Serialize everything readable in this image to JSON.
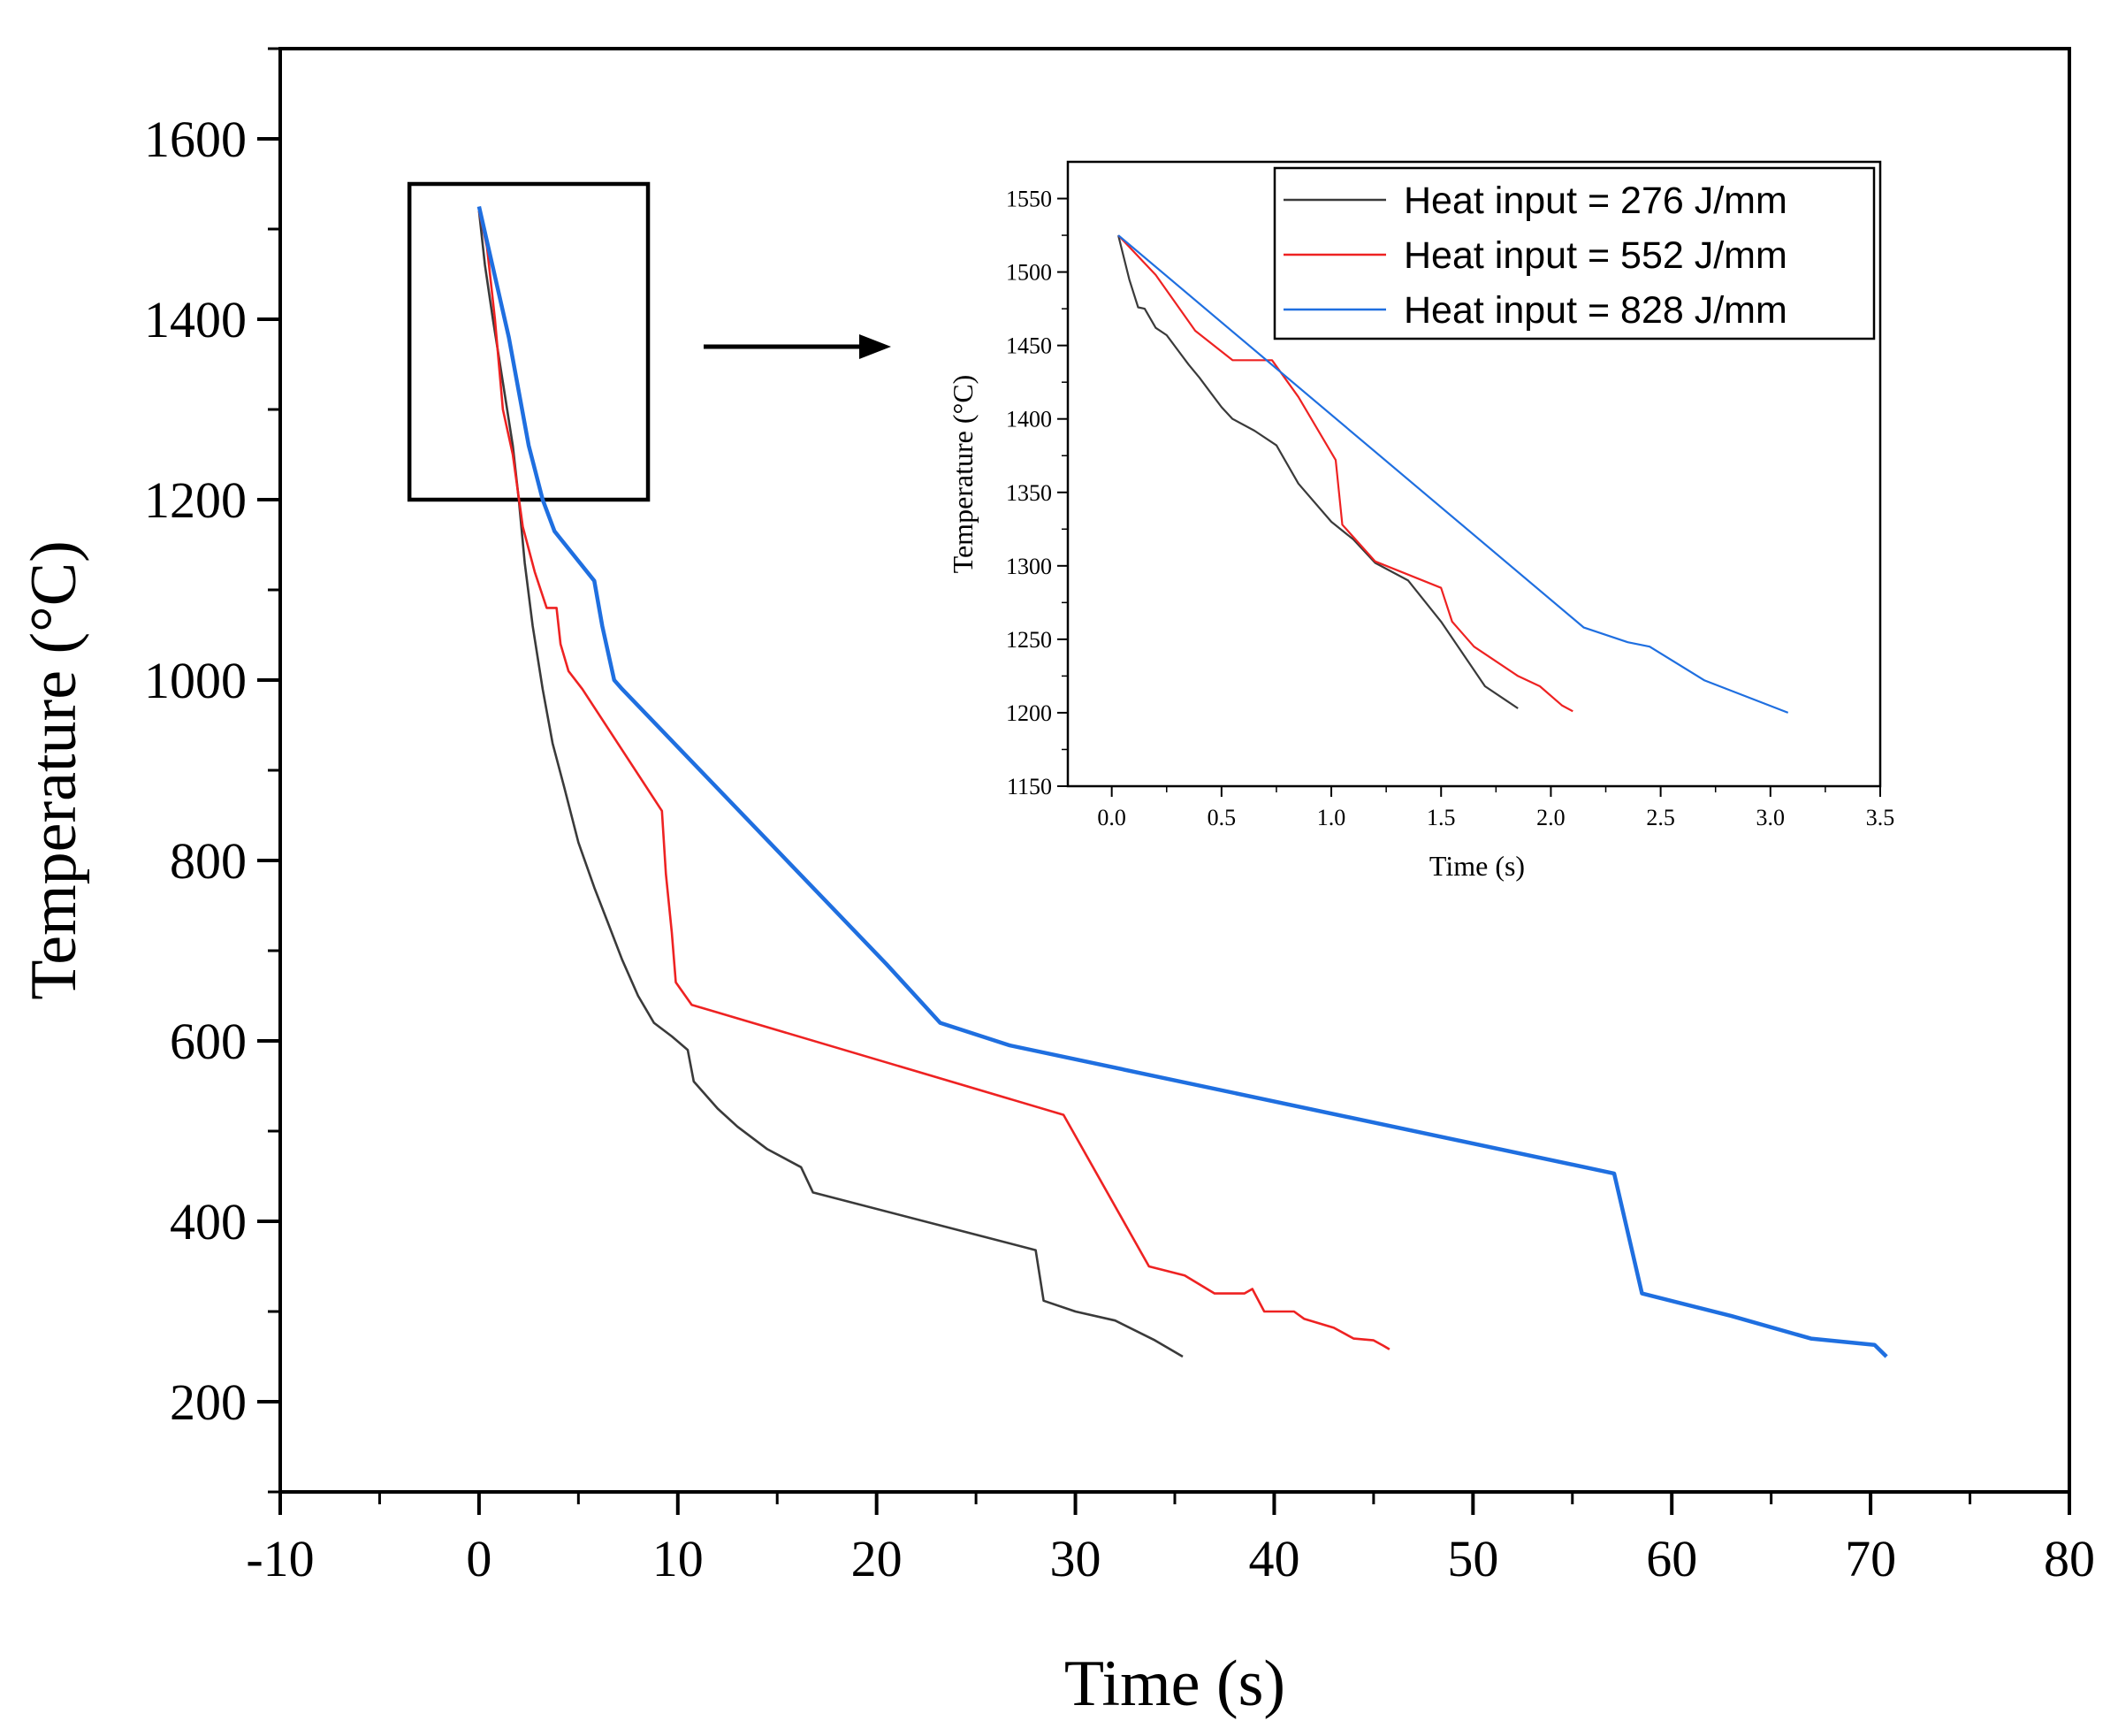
{
  "chart_data": [
    {
      "type": "line",
      "role": "main",
      "xlabel": "Time (s)",
      "ylabel": "Temperature (°C)",
      "xlim": [
        -10,
        80
      ],
      "ylim": [
        100,
        1700
      ],
      "xticks": [
        -10,
        0,
        10,
        20,
        30,
        40,
        50,
        60,
        70,
        80
      ],
      "yticks": [
        200,
        400,
        600,
        800,
        1000,
        1200,
        1400,
        1600
      ],
      "grid": false,
      "zoom_box": {
        "x_range": [
          -3.5,
          8.5
        ],
        "y_range": [
          1200,
          1550
        ]
      },
      "series": [
        {
          "color": "#3a3a3a",
          "points": [
            [
              0,
              1520
            ],
            [
              0.3,
              1460
            ],
            [
              0.7,
              1400
            ],
            [
              1.2,
              1330
            ],
            [
              1.7,
              1260
            ],
            [
              2.0,
              1200
            ],
            [
              2.3,
              1130
            ],
            [
              2.7,
              1060
            ],
            [
              3.2,
              990
            ],
            [
              3.7,
              930
            ],
            [
              4.3,
              880
            ],
            [
              5.0,
              820
            ],
            [
              5.8,
              770
            ],
            [
              6.5,
              730
            ],
            [
              7.2,
              690
            ],
            [
              8.0,
              650
            ],
            [
              8.8,
              620
            ],
            [
              9.7,
              605
            ],
            [
              10.5,
              590
            ],
            [
              10.8,
              555
            ],
            [
              12,
              525
            ],
            [
              13,
              505
            ],
            [
              14.5,
              480
            ],
            [
              16.2,
              460
            ],
            [
              16.8,
              432
            ],
            [
              28.0,
              368
            ],
            [
              28.4,
              312
            ],
            [
              30,
              300
            ],
            [
              32,
              290
            ],
            [
              34,
              268
            ],
            [
              35.4,
              250
            ]
          ]
        },
        {
          "color": "#ee2222",
          "points": [
            [
              0,
              1520
            ],
            [
              0.4,
              1480
            ],
            [
              0.8,
              1400
            ],
            [
              1.2,
              1300
            ],
            [
              1.7,
              1250
            ],
            [
              2.2,
              1170
            ],
            [
              2.8,
              1120
            ],
            [
              3.4,
              1080
            ],
            [
              3.9,
              1080
            ],
            [
              4.1,
              1040
            ],
            [
              4.5,
              1010
            ],
            [
              5.2,
              990
            ],
            [
              9.2,
              855
            ],
            [
              9.4,
              785
            ],
            [
              9.7,
              720
            ],
            [
              9.9,
              665
            ],
            [
              10.7,
              640
            ],
            [
              29.4,
              518
            ],
            [
              33.7,
              350
            ],
            [
              35.5,
              340
            ],
            [
              37,
              320
            ],
            [
              38.5,
              320
            ],
            [
              38.9,
              325
            ],
            [
              39.5,
              300
            ],
            [
              41,
              300
            ],
            [
              41.5,
              292
            ],
            [
              43,
              282
            ],
            [
              44,
              270
            ],
            [
              45,
              268
            ],
            [
              45.5,
              262
            ],
            [
              45.8,
              258
            ]
          ]
        },
        {
          "color": "#1f6fe0",
          "points": [
            [
              0,
              1525
            ],
            [
              1.5,
              1380
            ],
            [
              2.5,
              1260
            ],
            [
              3.2,
              1200
            ],
            [
              3.8,
              1165
            ],
            [
              5.8,
              1110
            ],
            [
              6.2,
              1060
            ],
            [
              6.8,
              1000
            ],
            [
              7.2,
              990
            ],
            [
              20.5,
              685
            ],
            [
              23.2,
              620
            ],
            [
              26.7,
              595
            ],
            [
              57.1,
              453
            ],
            [
              58.5,
              320
            ],
            [
              63,
              295
            ],
            [
              67,
              270
            ],
            [
              70.2,
              263
            ],
            [
              70.8,
              250
            ]
          ]
        }
      ]
    },
    {
      "type": "line",
      "role": "inset",
      "xlabel": "Time (s)",
      "ylabel": "Temperature (°C)",
      "xlim": [
        -0.2,
        3.5
      ],
      "ylim": [
        1150,
        1575
      ],
      "xticks": [
        0.0,
        0.5,
        1.0,
        1.5,
        2.0,
        2.5,
        3.0,
        3.5
      ],
      "xtick_labels": [
        "0.0",
        "0.5",
        "1.0",
        "1.5",
        "2.0",
        "2.5",
        "3.0",
        "3.5"
      ],
      "yticks": [
        1150,
        1200,
        1250,
        1300,
        1350,
        1400,
        1450,
        1500,
        1550
      ],
      "grid": false,
      "legend": "top-right",
      "series": [
        {
          "name": "Heat input = 276 J/mm",
          "color": "#3a3a3a",
          "points": [
            [
              0.03,
              1525
            ],
            [
              0.08,
              1495
            ],
            [
              0.12,
              1476
            ],
            [
              0.15,
              1475
            ],
            [
              0.2,
              1462
            ],
            [
              0.25,
              1457
            ],
            [
              0.3,
              1447
            ],
            [
              0.35,
              1437
            ],
            [
              0.4,
              1428
            ],
            [
              0.45,
              1418
            ],
            [
              0.5,
              1408
            ],
            [
              0.55,
              1400
            ],
            [
              0.65,
              1392
            ],
            [
              0.75,
              1382
            ],
            [
              0.85,
              1356
            ],
            [
              1.0,
              1330
            ],
            [
              1.1,
              1318
            ],
            [
              1.2,
              1302
            ],
            [
              1.35,
              1290
            ],
            [
              1.5,
              1262
            ],
            [
              1.6,
              1240
            ],
            [
              1.7,
              1218
            ],
            [
              1.8,
              1208
            ],
            [
              1.85,
              1203
            ]
          ]
        },
        {
          "name": "Heat input = 552 J/mm",
          "color": "#ee2222",
          "points": [
            [
              0.03,
              1525
            ],
            [
              0.2,
              1498
            ],
            [
              0.38,
              1460
            ],
            [
              0.55,
              1440
            ],
            [
              0.73,
              1440
            ],
            [
              0.85,
              1415
            ],
            [
              1.02,
              1372
            ],
            [
              1.05,
              1328
            ],
            [
              1.2,
              1303
            ],
            [
              1.5,
              1285
            ],
            [
              1.55,
              1262
            ],
            [
              1.65,
              1245
            ],
            [
              1.85,
              1225
            ],
            [
              1.95,
              1218
            ],
            [
              2.05,
              1205
            ],
            [
              2.1,
              1201
            ]
          ]
        },
        {
          "name": "Heat input = 828 J/mm",
          "color": "#1f6fe0",
          "points": [
            [
              0.03,
              1525
            ],
            [
              2.15,
              1258
            ],
            [
              2.35,
              1248
            ],
            [
              2.45,
              1245
            ],
            [
              2.7,
              1222
            ],
            [
              3.08,
              1200
            ]
          ]
        }
      ]
    }
  ]
}
